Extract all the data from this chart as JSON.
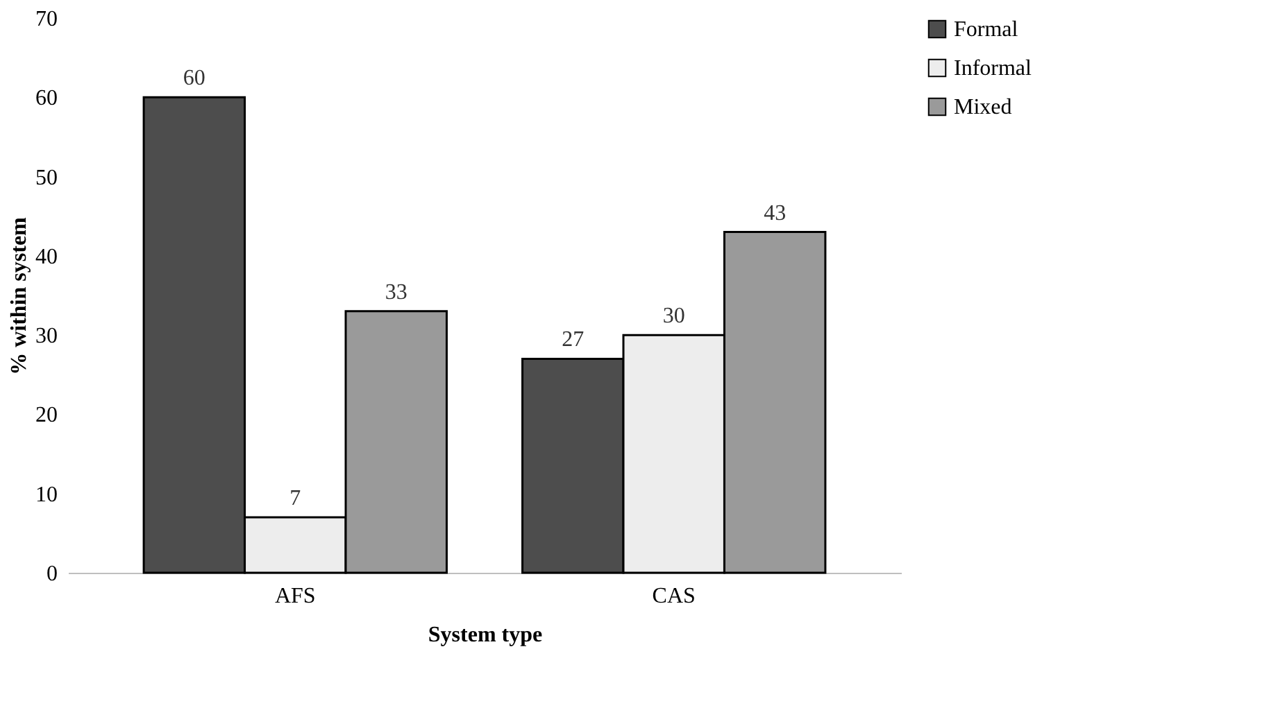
{
  "chart_data": {
    "type": "bar",
    "xlabel": "System type",
    "ylabel": "% within system",
    "categories": [
      "AFS",
      "CAS"
    ],
    "series": [
      {
        "name": "Formal",
        "color": "#4d4d4d",
        "values": [
          60,
          27
        ]
      },
      {
        "name": "Informal",
        "color": "#ededed",
        "values": [
          7,
          30
        ]
      },
      {
        "name": "Mixed",
        "color": "#9a9a9a",
        "values": [
          33,
          43
        ]
      }
    ],
    "ylim": [
      0,
      70
    ],
    "yticks": [
      0,
      10,
      20,
      30,
      40,
      50,
      60,
      70
    ],
    "grid": false,
    "legend": "top right",
    "data_labels": true
  }
}
